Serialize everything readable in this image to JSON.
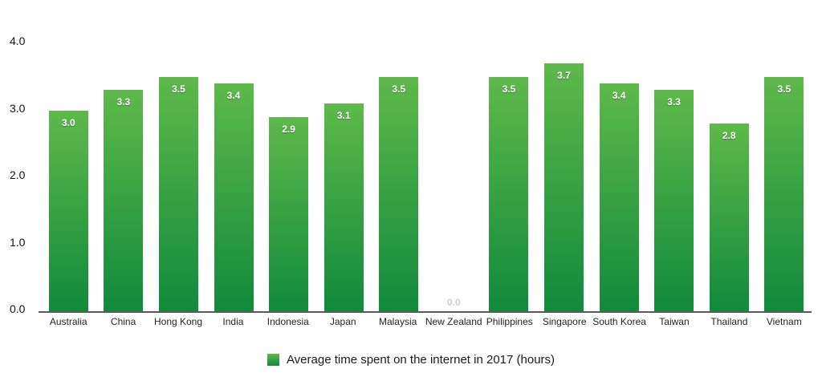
{
  "chart_data": {
    "type": "bar",
    "title": "",
    "xlabel": "",
    "ylabel": "",
    "categories": [
      "Australia",
      "China",
      "Hong Kong",
      "India",
      "Indonesia",
      "Japan",
      "Malaysia",
      "New Zealand",
      "Philippines",
      "Singapore",
      "South Korea",
      "Taiwan",
      "Thailand",
      "Vietnam"
    ],
    "values": [
      3.0,
      3.3,
      3.5,
      3.4,
      2.9,
      3.1,
      3.5,
      0.0,
      3.5,
      3.7,
      3.4,
      3.3,
      2.8,
      3.5
    ],
    "value_labels": [
      "3.0",
      "3.3",
      "3.5",
      "3.4",
      "2.9",
      "3.1",
      "3.5",
      "0.0",
      "3.5",
      "3.7",
      "3.4",
      "3.3",
      "2.8",
      "3.5"
    ],
    "ylim": [
      0.0,
      4.0
    ],
    "yticks": [
      {
        "label": "0.0",
        "value": 0.0
      },
      {
        "label": "1.0",
        "value": 1.0
      },
      {
        "label": "2.0",
        "value": 2.0
      },
      {
        "label": "3.0",
        "value": 3.0
      },
      {
        "label": "4.0",
        "value": 4.0
      }
    ],
    "grid": false,
    "legend_position": "bottom",
    "legend_label": "Average time spent on the internet in 2017 (hours)"
  },
  "colors": {
    "background": "#ffffff",
    "bar_gradient_top": "#5eb94a",
    "bar_gradient_bottom": "#118a3c",
    "axis_line": "#58595b",
    "tick_text": "#111111",
    "category_text": "#222222",
    "value_text": "#ffffff",
    "zero_value_text": "#cccccc",
    "legend_text": "#1a1a1a"
  }
}
